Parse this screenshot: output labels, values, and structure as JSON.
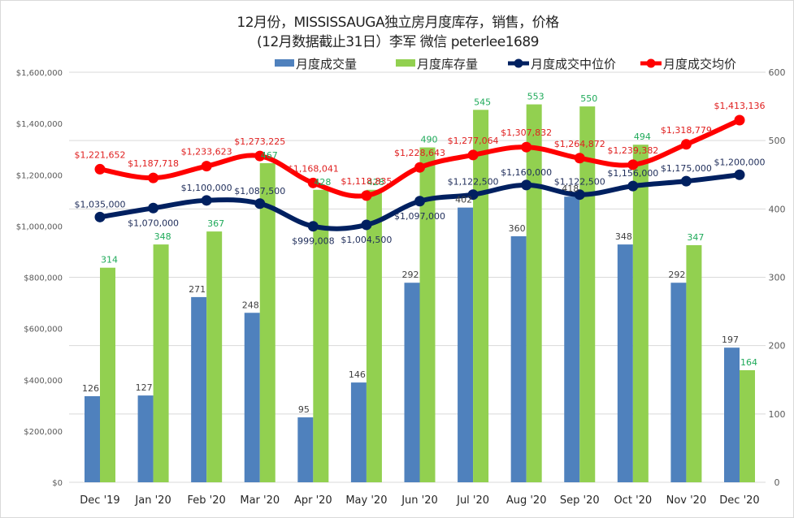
{
  "chart_data": {
    "type": "bar",
    "title": "12月份，MISSISSAUGA独立房月度库存，销售，价格",
    "subtitle": "(12月数据截止31日）李军 微信 peterlee1689",
    "categories": [
      "Dec '19",
      "Jan '20",
      "Feb '20",
      "Mar '20",
      "Apr '20",
      "May '20",
      "Jun '20",
      "Jul '20",
      "Aug '20",
      "Sep '20",
      "Oct '20",
      "Nov '20",
      "Dec '20"
    ],
    "left_axis": {
      "ylim": [
        0,
        1600000
      ],
      "ticks": [
        "$0",
        "$200,000",
        "$400,000",
        "$600,000",
        "$800,000",
        "$1,000,000",
        "$1,200,000",
        "$1,400,000",
        "$1,600,000"
      ],
      "tick_values": [
        0,
        200000,
        400000,
        600000,
        800000,
        1000000,
        1200000,
        1400000,
        1600000
      ]
    },
    "right_axis": {
      "ylim": [
        0,
        600
      ],
      "ticks": [
        "0",
        "100",
        "200",
        "300",
        "400",
        "500",
        "600"
      ],
      "tick_values": [
        0,
        100,
        200,
        300,
        400,
        500,
        600
      ]
    },
    "grid": true,
    "legend_position": "top-right",
    "series": [
      {
        "name": "月度成交量",
        "kind": "bar",
        "axis": "right",
        "color": "#4f81bd",
        "label_color": "#404040",
        "values": [
          126,
          127,
          271,
          248,
          95,
          146,
          292,
          402,
          360,
          418,
          348,
          292,
          197
        ],
        "labels": [
          "126",
          "127",
          "271",
          "248",
          "95",
          "146",
          "292",
          "402",
          "360",
          "418",
          "348",
          "292",
          "197"
        ]
      },
      {
        "name": "月度库存量",
        "kind": "bar",
        "axis": "right",
        "color": "#92d050",
        "label_color": "#1faa5a",
        "values": [
          314,
          348,
          367,
          467,
          428,
          428,
          490,
          545,
          553,
          550,
          494,
          347,
          164
        ],
        "labels": [
          "314",
          "348",
          "367",
          "467",
          "428",
          "428",
          "490",
          "545",
          "553",
          "550",
          "494",
          "347",
          "164"
        ]
      },
      {
        "name": "月度成交中位价",
        "kind": "line",
        "axis": "left",
        "color": "#002060",
        "label_color": "#1f2d5a",
        "values": [
          1035000,
          1070000,
          1100000,
          1087500,
          999008,
          1004500,
          1097000,
          1122500,
          1160000,
          1122500,
          1156000,
          1175000,
          1200000
        ],
        "labels": [
          "$1,035,000",
          "$1,070,000",
          "$1,100,000",
          "$1,087,500",
          "$999,008",
          "$1,004,500",
          "$1,097,000",
          "$1,122,500",
          "$1,160,000",
          "$1,122,500",
          "$1,156,000",
          "$1,175,000",
          "$1,200,000"
        ]
      },
      {
        "name": "月度成交均价",
        "kind": "line",
        "axis": "left",
        "color": "#ff0000",
        "label_color": "#e02020",
        "values": [
          1221652,
          1187718,
          1233623,
          1273225,
          1168041,
          1118835,
          1228643,
          1277064,
          1307832,
          1264872,
          1239382,
          1318779,
          1413136
        ],
        "labels": [
          "$1,221,652",
          "$1,187,718",
          "$1,233,623",
          "$1,273,225",
          "$1,168,041",
          "$1,118,835",
          "$1,228,643",
          "$1,277,064",
          "$1,307,832",
          "$1,264,872",
          "$1,239,382",
          "$1,318,779",
          "$1,413,136"
        ]
      }
    ]
  }
}
